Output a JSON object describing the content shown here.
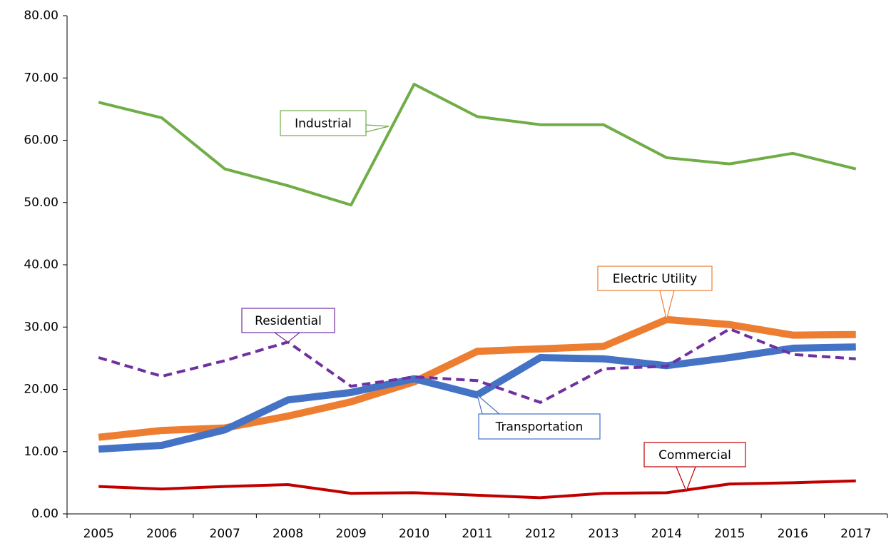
{
  "chart_data": {
    "type": "line",
    "categories": [
      "2005",
      "2006",
      "2007",
      "2008",
      "2009",
      "2010",
      "2011",
      "2012",
      "2013",
      "2014",
      "2015",
      "2016",
      "2017"
    ],
    "ylim": [
      0,
      80
    ],
    "yticks": [
      {
        "value": 0,
        "label": "0.00"
      },
      {
        "value": 10,
        "label": "10.00"
      },
      {
        "value": 20,
        "label": "20.00"
      },
      {
        "value": 30,
        "label": "30.00"
      },
      {
        "value": 40,
        "label": "40.00"
      },
      {
        "value": 50,
        "label": "50.00"
      },
      {
        "value": 60,
        "label": "60.00"
      },
      {
        "value": 70,
        "label": "70.00"
      },
      {
        "value": 80,
        "label": "80.00"
      }
    ],
    "grid": false,
    "series": [
      {
        "name": "Electric Utility",
        "color": "#ed7d31",
        "values": [
          12.3,
          13.4,
          13.8,
          15.7,
          18.0,
          21.2,
          26.1,
          26.5,
          26.9,
          31.2,
          30.4,
          28.7,
          28.8
        ]
      },
      {
        "name": "Transportation",
        "color": "#4472c4",
        "values": [
          10.4,
          11.0,
          13.5,
          18.3,
          19.5,
          21.7,
          19.1,
          25.1,
          24.9,
          23.8,
          25.1,
          26.6,
          26.8
        ]
      },
      {
        "name": "Residential",
        "color": "#7030a0",
        "dashed": true,
        "values": [
          25.1,
          22.1,
          24.6,
          27.6,
          20.5,
          22.0,
          21.4,
          17.9,
          23.3,
          23.7,
          29.7,
          25.6,
          24.9
        ]
      },
      {
        "name": "Industrial",
        "color": "#70ad47",
        "values": [
          66.1,
          63.6,
          55.4,
          52.7,
          49.6,
          69.0,
          63.8,
          62.5,
          62.5,
          57.2,
          56.2,
          57.9,
          55.4
        ]
      },
      {
        "name": "Commercial",
        "color": "#c00000",
        "values": [
          4.4,
          4.0,
          4.4,
          4.7,
          3.3,
          3.4,
          3.0,
          2.6,
          3.3,
          3.4,
          4.8,
          5.0,
          5.3
        ]
      }
    ]
  }
}
